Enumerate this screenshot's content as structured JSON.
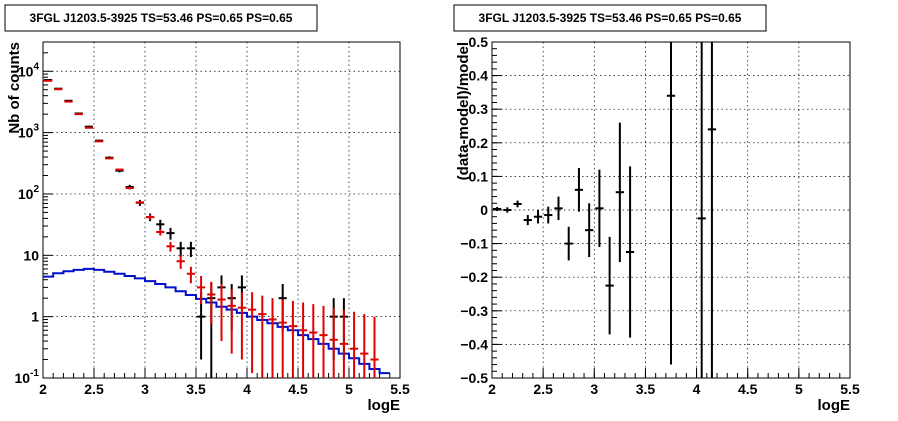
{
  "chart_data": [
    {
      "type": "scatter",
      "title": "3FGL J1203.5-3925 TS=53.46 PS=0.65 PS=0.65",
      "xlabel": "logE",
      "ylabel": "Nb of counts",
      "xlim": [
        2,
        5.5
      ],
      "ylim": [
        0.1,
        30000
      ],
      "yscale": "log",
      "grid": true,
      "xticks": [
        "2",
        "2.5",
        "3",
        "3.5",
        "4",
        "4.5",
        "5",
        "5.5"
      ],
      "yticks": [
        {
          "value": 0.1,
          "base": "10",
          "exp": "-1"
        },
        {
          "value": 1,
          "base": "1",
          "exp": ""
        },
        {
          "value": 10,
          "base": "10",
          "exp": ""
        },
        {
          "value": 100,
          "base": "10",
          "exp": "2"
        },
        {
          "value": 1000,
          "base": "10",
          "exp": "3"
        },
        {
          "value": 10000,
          "base": "10",
          "exp": "4"
        }
      ],
      "series": [
        {
          "color": "#000000",
          "halfwidth": 0.05,
          "points": [
            {
              "x": 2.05,
              "y": 7200,
              "lo": 7100,
              "hi": 7300
            },
            {
              "x": 2.15,
              "y": 5200,
              "lo": 5100,
              "hi": 5300
            },
            {
              "x": 2.25,
              "y": 3300,
              "lo": 3220,
              "hi": 3380
            },
            {
              "x": 2.35,
              "y": 2050,
              "lo": 2000,
              "hi": 2100
            },
            {
              "x": 2.45,
              "y": 1250,
              "lo": 1210,
              "hi": 1290
            },
            {
              "x": 2.55,
              "y": 740,
              "lo": 715,
              "hi": 765
            },
            {
              "x": 2.65,
              "y": 390,
              "lo": 370,
              "hi": 410
            },
            {
              "x": 2.75,
              "y": 240,
              "lo": 225,
              "hi": 255
            },
            {
              "x": 2.85,
              "y": 130,
              "lo": 119,
              "hi": 141
            },
            {
              "x": 2.95,
              "y": 72,
              "lo": 64,
              "hi": 80
            },
            {
              "x": 3.05,
              "y": 42,
              "lo": 36,
              "hi": 48
            },
            {
              "x": 3.15,
              "y": 32,
              "lo": 26,
              "hi": 38
            },
            {
              "x": 3.25,
              "y": 23,
              "lo": 18,
              "hi": 28
            },
            {
              "x": 3.35,
              "y": 13,
              "lo": 9.4,
              "hi": 16.6
            },
            {
              "x": 3.45,
              "y": 13,
              "lo": 9.4,
              "hi": 16.6
            },
            {
              "x": 3.55,
              "y": 1,
              "lo": 0.2,
              "hi": 2.5
            },
            {
              "x": 3.65,
              "y": 2,
              "lo": 0.1,
              "hi": 3.6
            },
            {
              "x": 3.75,
              "y": 3,
              "lo": 1.3,
              "hi": 4.7
            },
            {
              "x": 3.85,
              "y": 2,
              "lo": 0.6,
              "hi": 3.4
            },
            {
              "x": 3.95,
              "y": 3,
              "lo": 1.3,
              "hi": 4.7
            },
            {
              "x": 4.35,
              "y": 2,
              "lo": 0.6,
              "hi": 3.4
            },
            {
              "x": 4.85,
              "y": 1,
              "lo": 0.2,
              "hi": 2.0
            },
            {
              "x": 4.95,
              "y": 1,
              "lo": 0.2,
              "hi": 2.0
            }
          ]
        },
        {
          "color": "#e00000",
          "halfwidth": 0.05,
          "points": [
            {
              "x": 2.05,
              "y": 7000,
              "lo": 6950,
              "hi": 7050
            },
            {
              "x": 2.15,
              "y": 5100,
              "lo": 5060,
              "hi": 5140
            },
            {
              "x": 2.25,
              "y": 3200,
              "lo": 3170,
              "hi": 3230
            },
            {
              "x": 2.35,
              "y": 2000,
              "lo": 1980,
              "hi": 2020
            },
            {
              "x": 2.45,
              "y": 1200,
              "lo": 1185,
              "hi": 1215
            },
            {
              "x": 2.55,
              "y": 720,
              "lo": 710,
              "hi": 730
            },
            {
              "x": 2.65,
              "y": 380,
              "lo": 372,
              "hi": 388
            },
            {
              "x": 2.75,
              "y": 250,
              "lo": 244,
              "hi": 256
            },
            {
              "x": 2.85,
              "y": 125,
              "lo": 120,
              "hi": 130
            },
            {
              "x": 2.95,
              "y": 73,
              "lo": 69,
              "hi": 77
            },
            {
              "x": 3.05,
              "y": 42,
              "lo": 38,
              "hi": 46
            },
            {
              "x": 3.15,
              "y": 24,
              "lo": 21,
              "hi": 27
            },
            {
              "x": 3.25,
              "y": 14,
              "lo": 11.5,
              "hi": 16.5
            },
            {
              "x": 3.35,
              "y": 8,
              "lo": 6,
              "hi": 10
            },
            {
              "x": 3.45,
              "y": 5,
              "lo": 3.5,
              "hi": 6.5
            },
            {
              "x": 3.55,
              "y": 3,
              "lo": 1.6,
              "hi": 4.6
            },
            {
              "x": 3.65,
              "y": 2.3,
              "lo": 0.75,
              "hi": 3.7
            },
            {
              "x": 3.75,
              "y": 1.9,
              "lo": 0.4,
              "hi": 3.4
            },
            {
              "x": 3.85,
              "y": 1.5,
              "lo": 0.25,
              "hi": 2.8
            },
            {
              "x": 3.95,
              "y": 1.4,
              "lo": 0.2,
              "hi": 2.5
            },
            {
              "x": 4.05,
              "y": 1.3,
              "lo": 0.12,
              "hi": 2.5
            },
            {
              "x": 4.15,
              "y": 1.1,
              "lo": 0.1,
              "hi": 2.2
            },
            {
              "x": 4.25,
              "y": 0.9,
              "lo": 0.1,
              "hi": 2.0
            },
            {
              "x": 4.35,
              "y": 0.8,
              "lo": 0.1,
              "hi": 1.9
            },
            {
              "x": 4.45,
              "y": 0.7,
              "lo": 0.1,
              "hi": 1.8
            },
            {
              "x": 4.55,
              "y": 0.6,
              "lo": 0.1,
              "hi": 1.7
            },
            {
              "x": 4.65,
              "y": 0.55,
              "lo": 0.1,
              "hi": 1.6
            },
            {
              "x": 4.75,
              "y": 0.5,
              "lo": 0.1,
              "hi": 1.5
            },
            {
              "x": 4.85,
              "y": 0.42,
              "lo": 0.1,
              "hi": 1.4
            },
            {
              "x": 4.95,
              "y": 0.36,
              "lo": 0.1,
              "hi": 1.3
            },
            {
              "x": 5.05,
              "y": 0.3,
              "lo": 0.1,
              "hi": 1.2
            },
            {
              "x": 5.15,
              "y": 0.25,
              "lo": 0.1,
              "hi": 1.1
            },
            {
              "x": 5.25,
              "y": 0.2,
              "lo": 0.1,
              "hi": 1.0
            }
          ]
        }
      ],
      "model_step": {
        "color": "#0010cc",
        "bin_width": 0.1,
        "edges_start": 2.0,
        "values": [
          4.5,
          5.1,
          5.5,
          5.8,
          6.0,
          5.8,
          5.4,
          5.0,
          4.6,
          4.2,
          3.8,
          3.4,
          3.0,
          2.6,
          2.25,
          1.95,
          1.7,
          1.45,
          1.3,
          1.15,
          1.0,
          0.88,
          0.78,
          0.68,
          0.6,
          0.5,
          0.43,
          0.36,
          0.3,
          0.25,
          0.21,
          0.17,
          0.14,
          0.12
        ]
      }
    },
    {
      "type": "scatter",
      "title": "3FGL J1203.5-3925 TS=53.46 PS=0.65 PS=0.65",
      "xlabel": "logE",
      "ylabel": "(data-model)/model",
      "xlim": [
        2,
        5.5
      ],
      "ylim": [
        -0.5,
        0.5
      ],
      "grid": true,
      "xticks": [
        "2",
        "2.5",
        "3",
        "3.5",
        "4",
        "4.5",
        "5",
        "5.5"
      ],
      "yticks": [
        "−0.5",
        "−0.4",
        "−0.3",
        "−0.2",
        "−0.1",
        "0",
        "0.1",
        "0.2",
        "0.3",
        "0.4",
        "0.5"
      ],
      "series": [
        {
          "color": "#000000",
          "halfwidth": 0.05,
          "points": [
            {
              "x": 2.05,
              "y": 0.003,
              "lo": -0.003,
              "hi": 0.009
            },
            {
              "x": 2.15,
              "y": 0.0,
              "lo": -0.008,
              "hi": 0.008
            },
            {
              "x": 2.25,
              "y": 0.018,
              "lo": 0.008,
              "hi": 0.028
            },
            {
              "x": 2.35,
              "y": -0.03,
              "lo": -0.045,
              "hi": -0.015
            },
            {
              "x": 2.45,
              "y": -0.02,
              "lo": -0.04,
              "hi": 0.0
            },
            {
              "x": 2.55,
              "y": -0.015,
              "lo": -0.04,
              "hi": 0.01
            },
            {
              "x": 2.65,
              "y": 0.005,
              "lo": -0.03,
              "hi": 0.04
            },
            {
              "x": 2.75,
              "y": -0.1,
              "lo": -0.15,
              "hi": -0.05
            },
            {
              "x": 2.85,
              "y": 0.06,
              "lo": -0.005,
              "hi": 0.125
            },
            {
              "x": 2.95,
              "y": -0.06,
              "lo": -0.14,
              "hi": 0.02
            },
            {
              "x": 3.05,
              "y": 0.005,
              "lo": -0.11,
              "hi": 0.12
            },
            {
              "x": 3.15,
              "y": -0.225,
              "lo": -0.37,
              "hi": -0.08
            },
            {
              "x": 3.25,
              "y": 0.053,
              "lo": -0.155,
              "hi": 0.26
            },
            {
              "x": 3.35,
              "y": -0.125,
              "lo": -0.38,
              "hi": 0.13
            },
            {
              "x": 3.75,
              "y": 0.34,
              "lo": -0.46,
              "hi": 0.5
            },
            {
              "x": 4.05,
              "y": -0.025,
              "lo": -0.5,
              "hi": 0.5
            },
            {
              "x": 4.15,
              "y": 0.24,
              "lo": -0.5,
              "hi": 0.5
            }
          ]
        }
      ]
    }
  ]
}
